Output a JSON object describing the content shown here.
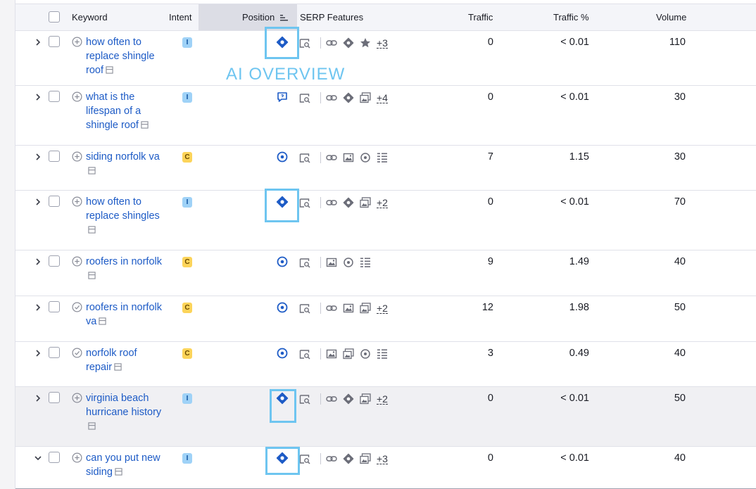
{
  "header": {
    "keyword": "Keyword",
    "intent": "Intent",
    "position": "Position",
    "serp_features": "SERP Features",
    "traffic": "Traffic",
    "traffic_pct": "Traffic %",
    "volume": "Volume"
  },
  "annotation": {
    "label": "AI OVERVIEW"
  },
  "colors": {
    "accent": "#1d5bc6",
    "annotation": "#6ec5f0",
    "intent_I": "#9fd2f7",
    "intent_C": "#fcd45a"
  },
  "rows": [
    {
      "keyword": "how often to replace shingle roof",
      "intent": "I",
      "position_icon": "ai-overview-icon",
      "more": "+3",
      "traffic": "0",
      "traffic_pct": "< 0.01",
      "volume": "110"
    },
    {
      "keyword": "what is the lifespan of a shingle roof",
      "intent": "I",
      "position_icon": "featured-snippet-icon",
      "more": "+4",
      "traffic": "0",
      "traffic_pct": "< 0.01",
      "volume": "30"
    },
    {
      "keyword": "siding norfolk va",
      "intent": "C",
      "position_icon": "local-pack-icon",
      "more": "",
      "traffic": "7",
      "traffic_pct": "1.15",
      "volume": "30"
    },
    {
      "keyword": "how often to replace shingles",
      "intent": "I",
      "position_icon": "ai-overview-icon",
      "more": "+2",
      "traffic": "0",
      "traffic_pct": "< 0.01",
      "volume": "70"
    },
    {
      "keyword": "roofers in norfolk",
      "intent": "C",
      "position_icon": "local-pack-icon",
      "more": "",
      "traffic": "9",
      "traffic_pct": "1.49",
      "volume": "40"
    },
    {
      "keyword": "roofers in norfolk va",
      "intent": "C",
      "position_icon": "local-pack-icon",
      "more": "+2",
      "traffic": "12",
      "traffic_pct": "1.98",
      "volume": "50"
    },
    {
      "keyword": "norfolk roof repair",
      "intent": "C",
      "position_icon": "local-pack-icon",
      "more": "",
      "traffic": "3",
      "traffic_pct": "0.49",
      "volume": "40"
    },
    {
      "keyword": "virginia beach hurricane history",
      "intent": "I",
      "position_icon": "ai-overview-icon",
      "more": "+2",
      "traffic": "0",
      "traffic_pct": "< 0.01",
      "volume": "50"
    },
    {
      "keyword": "can you put new siding",
      "intent": "I",
      "position_icon": "ai-overview-icon",
      "more": "+3",
      "traffic": "0",
      "traffic_pct": "< 0.01",
      "volume": "40"
    }
  ]
}
